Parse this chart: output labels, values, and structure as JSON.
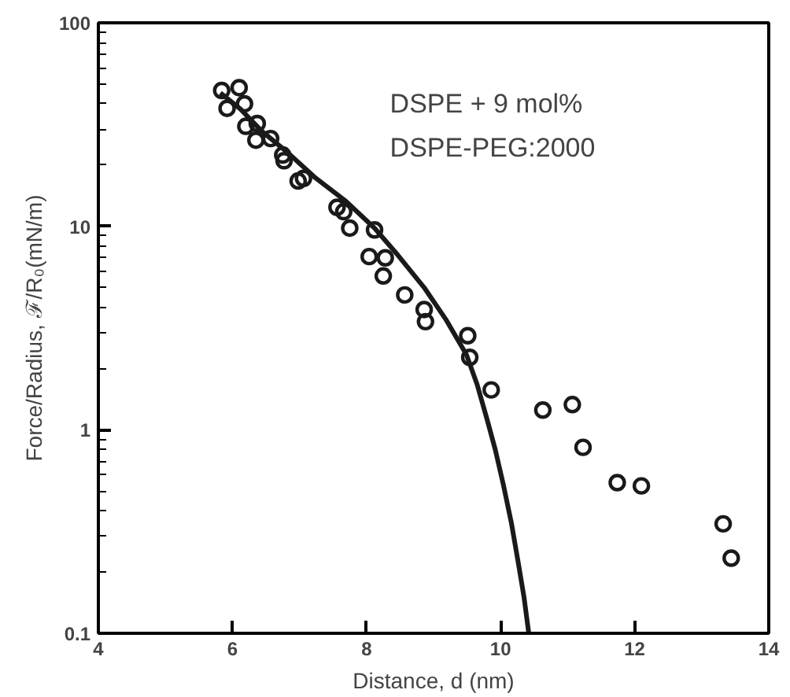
{
  "chart_data": {
    "type": "scatter",
    "xlabel": "Distance, d (nm)",
    "ylabel": "Force/Radius, ℱ/R₀(mN/m)",
    "log": "y",
    "xlim": [
      4,
      14
    ],
    "xticks": [
      4,
      6,
      8,
      10,
      12,
      14
    ],
    "ylim": [
      0.1,
      100
    ],
    "yticks": [
      0.1,
      1,
      10,
      100
    ],
    "grid": false,
    "annotations": [
      "DSPE + 9 mol%\nDSPE-PEG:2000"
    ],
    "series": [
      {
        "marker": "circle",
        "color": "#1a1a1a",
        "x": [
          5.84,
          5.92,
          6.1,
          6.18,
          6.2,
          6.37,
          6.35,
          6.57,
          6.75,
          6.77,
          6.98,
          7.06,
          7.56,
          7.66,
          7.75,
          8.12,
          8.04,
          8.28,
          8.25,
          8.57,
          8.86,
          8.88,
          9.51,
          9.54,
          9.86,
          10.63,
          11.07,
          11.23,
          11.74,
          12.1,
          13.32,
          13.44
        ],
        "values": [
          46.5,
          38,
          48,
          40,
          31,
          32,
          26.5,
          27,
          22.4,
          21,
          16.7,
          17.2,
          12.4,
          11.8,
          9.8,
          9.6,
          7.1,
          7.0,
          5.7,
          4.6,
          3.9,
          3.4,
          2.9,
          2.27,
          1.57,
          1.25,
          1.33,
          0.82,
          0.55,
          0.53,
          0.345,
          0.234
        ]
      },
      {
        "type": "line",
        "line_style": "solid",
        "marker": "none",
        "color": "#1a1a1a",
        "x": [
          5.82,
          6.12,
          6.43,
          6.82,
          7.22,
          7.69,
          8.12,
          8.47,
          8.86,
          9.18,
          9.49,
          9.65,
          9.8,
          9.92,
          10.04,
          10.16,
          10.27,
          10.35,
          10.42
        ],
        "values": [
          45.2,
          37.7,
          29.5,
          23.1,
          17.5,
          13.3,
          9.8,
          7.2,
          5.0,
          3.5,
          2.34,
          1.67,
          1.12,
          0.8,
          0.54,
          0.35,
          0.216,
          0.15,
          0.1
        ]
      }
    ]
  }
}
